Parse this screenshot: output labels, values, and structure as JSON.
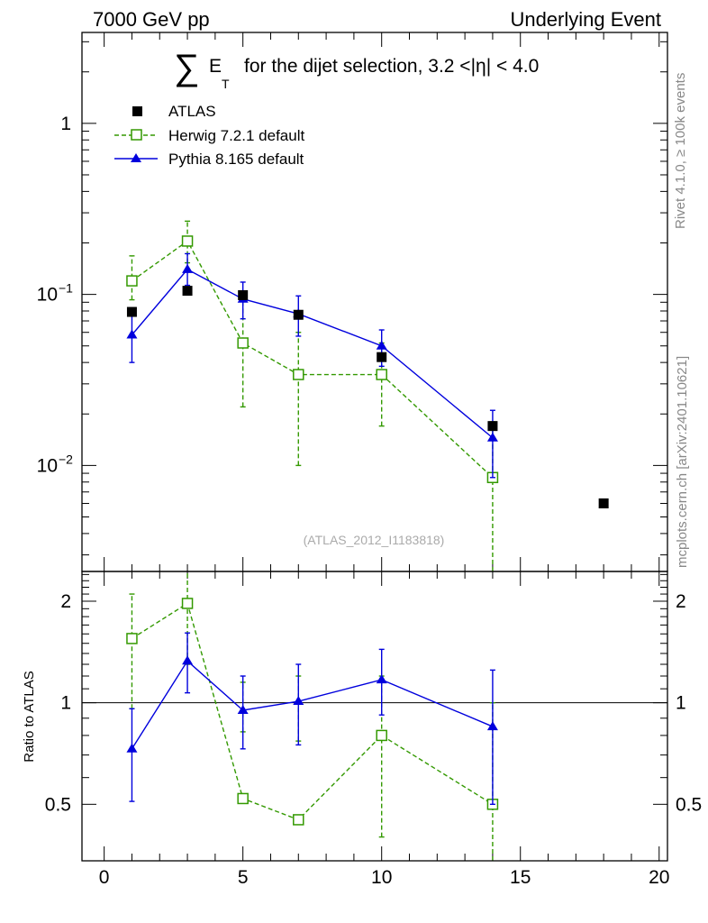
{
  "header": {
    "left": "7000 GeV pp",
    "right": "Underlying Event"
  },
  "plot_title": {
    "sigma": "∑",
    "e": "E",
    "t": "T",
    "rest": "for the dijet selection, 3.2 <|η| < 4.0"
  },
  "watermark": "(ATLAS_2012_I1183818)",
  "side_labels": {
    "rivet": "Rivet 4.1.0, ≥ 100k events",
    "mcplots": "mcplots.cern.ch [arXiv:2401.10621]"
  },
  "colors": {
    "atlas": "#000000",
    "herwig": "#339900",
    "pythia": "#0000dd"
  },
  "chart_data": [
    {
      "type": "scatter",
      "panel": "main",
      "yscale": "log",
      "xlim": [
        -0.8,
        20.3
      ],
      "ylim": [
        0.0024,
        3.4
      ],
      "y_ticks": [
        {
          "value": 1,
          "label": "1"
        },
        {
          "value": 0.1,
          "label": "10",
          "exp": "−1"
        },
        {
          "value": 0.01,
          "label": "10",
          "exp": "−2"
        }
      ],
      "legend": [
        "ATLAS",
        "Herwig 7.2.1 default",
        "Pythia 8.165 default"
      ],
      "series": [
        {
          "name": "ATLAS",
          "marker": "filled-square",
          "x": [
            1,
            3,
            5,
            7,
            10,
            14,
            18
          ],
          "y": [
            0.079,
            0.105,
            0.099,
            0.076,
            0.043,
            0.017,
            0.006
          ]
        },
        {
          "name": "Herwig 7.2.1 default",
          "marker": "open-square",
          "line": "dashed",
          "x": [
            1,
            3,
            5,
            7,
            10,
            14
          ],
          "y": [
            0.12,
            0.205,
            0.052,
            0.034,
            0.034,
            0.0085
          ],
          "err_lo": [
            0.093,
            0.153,
            0.022,
            0.01,
            0.017,
            0.0001
          ],
          "err_hi": [
            0.168,
            0.268,
            0.095,
            0.06,
            0.052,
            0.018
          ]
        },
        {
          "name": "Pythia 8.165 default",
          "marker": "filled-triangle",
          "line": "solid",
          "x": [
            1,
            3,
            5,
            7,
            10,
            14
          ],
          "y": [
            0.058,
            0.14,
            0.094,
            0.077,
            0.05,
            0.0145
          ],
          "err_lo": [
            0.04,
            0.113,
            0.072,
            0.057,
            0.038,
            0.0085
          ],
          "err_hi": [
            0.078,
            0.173,
            0.118,
            0.098,
            0.062,
            0.021
          ]
        }
      ]
    },
    {
      "type": "scatter",
      "panel": "ratio",
      "ylabel": "Ratio to ATLAS",
      "xlim": [
        -0.8,
        20.3
      ],
      "ylim": [
        0.34,
        2.45
      ],
      "x_ticks": [
        {
          "value": 0,
          "label": "0"
        },
        {
          "value": 5,
          "label": "5"
        },
        {
          "value": 10,
          "label": "10"
        },
        {
          "value": 15,
          "label": "15"
        },
        {
          "value": 20,
          "label": "20"
        }
      ],
      "y_ticks": [
        {
          "value": 2,
          "label": "2"
        },
        {
          "value": 1,
          "label": "1"
        },
        {
          "value": 0.5,
          "label": "0.5"
        }
      ],
      "reference_line": 1,
      "series": [
        {
          "name": "Herwig 7.2.1 default",
          "marker": "open-square",
          "line": "dashed",
          "x": [
            1,
            3,
            5,
            7,
            10,
            14
          ],
          "y": [
            1.55,
            1.97,
            0.52,
            0.45,
            0.8,
            0.5
          ],
          "err_lo": [
            0.96,
            1.3,
            0.82,
            0.77,
            0.4,
            0.34
          ],
          "err_hi": [
            2.1,
            2.45,
            1.15,
            1.2,
            1.2,
            1.0
          ]
        },
        {
          "name": "Pythia 8.165 default",
          "marker": "filled-triangle",
          "line": "solid",
          "x": [
            1,
            3,
            5,
            7,
            10,
            14
          ],
          "y": [
            0.73,
            1.33,
            0.95,
            1.01,
            1.17,
            0.85
          ],
          "err_lo": [
            0.51,
            1.07,
            0.73,
            0.75,
            0.92,
            0.5
          ],
          "err_hi": [
            0.96,
            1.61,
            1.2,
            1.3,
            1.44,
            1.25
          ]
        }
      ]
    }
  ]
}
